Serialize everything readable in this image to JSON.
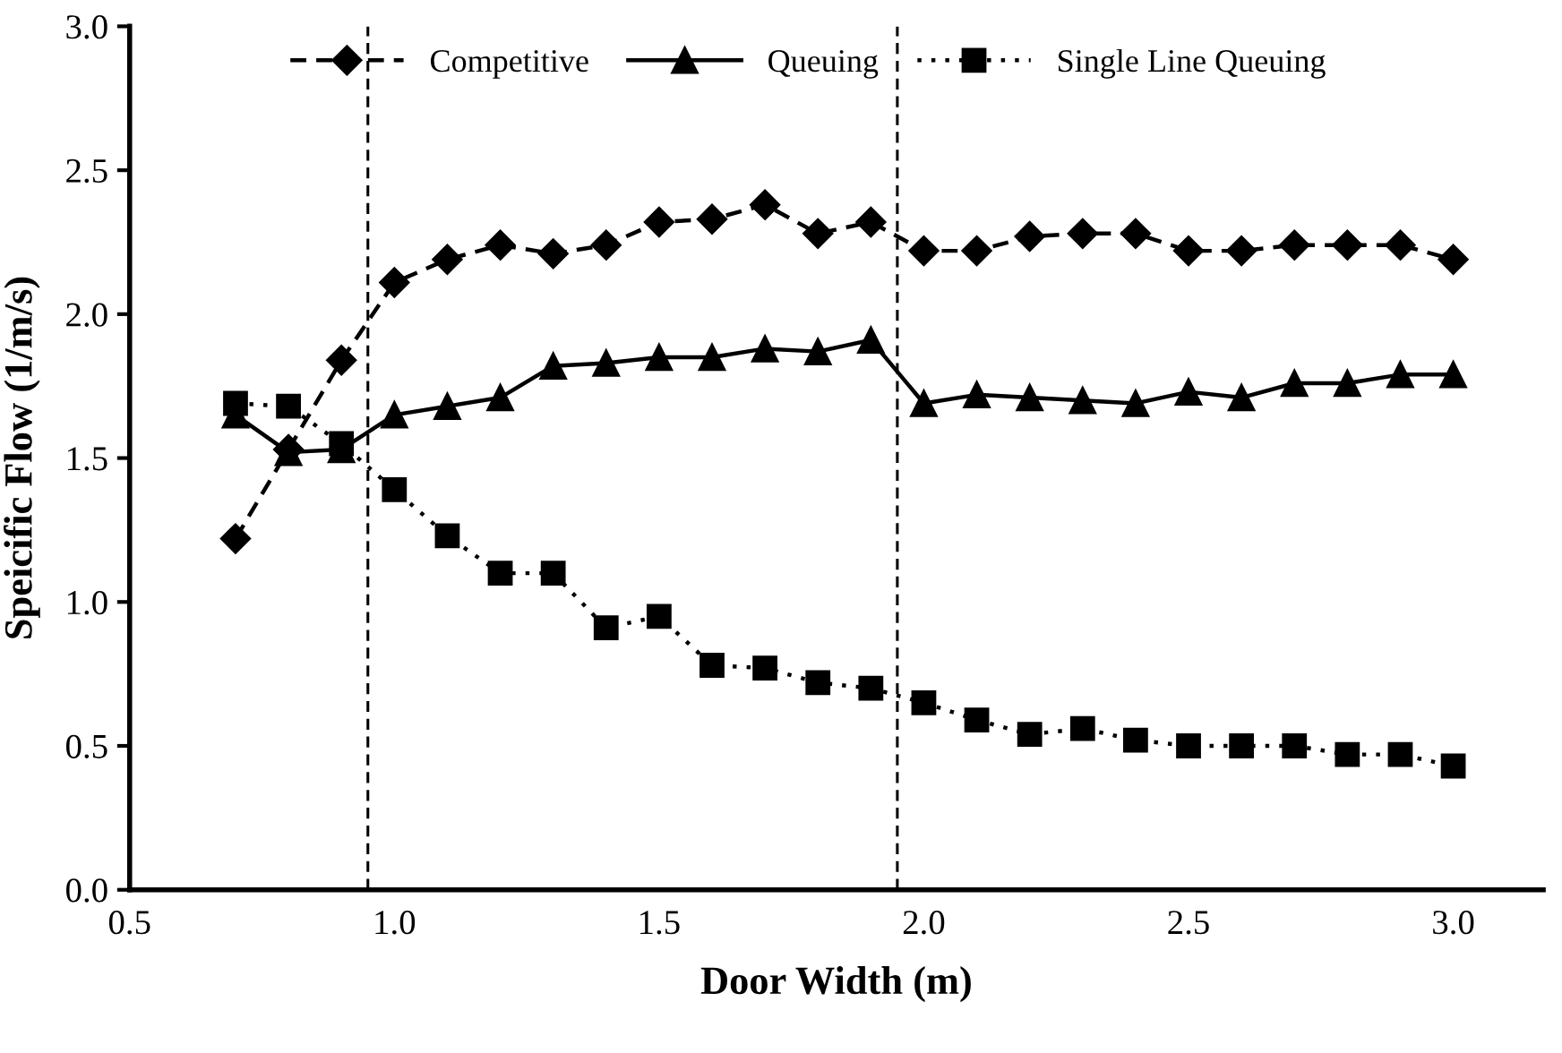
{
  "chart_data": {
    "type": "line",
    "xlabel": "Door Width (m)",
    "ylabel": "Speicific Flow (1/m/s)",
    "x": [
      0.7,
      0.8,
      0.9,
      1.0,
      1.1,
      1.2,
      1.3,
      1.4,
      1.5,
      1.6,
      1.7,
      1.8,
      1.9,
      2.0,
      2.1,
      2.2,
      2.3,
      2.4,
      2.5,
      2.6,
      2.7,
      2.8,
      2.9,
      3.0
    ],
    "series": [
      {
        "name": "Competitive",
        "color": "#000000",
        "marker": "diamond",
        "line_style": "dashed",
        "values": [
          1.22,
          1.53,
          1.84,
          2.11,
          2.19,
          2.24,
          2.21,
          2.24,
          2.32,
          2.33,
          2.38,
          2.28,
          2.32,
          2.22,
          2.22,
          2.27,
          2.28,
          2.28,
          2.22,
          2.22,
          2.24,
          2.24,
          2.24,
          2.19
        ]
      },
      {
        "name": "Queuing",
        "color": "#000000",
        "marker": "triangle",
        "line_style": "solid",
        "values": [
          1.65,
          1.52,
          1.53,
          1.65,
          1.68,
          1.71,
          1.82,
          1.83,
          1.85,
          1.85,
          1.88,
          1.87,
          1.91,
          1.69,
          1.72,
          1.71,
          1.7,
          1.69,
          1.73,
          1.71,
          1.76,
          1.76,
          1.79,
          1.79
        ]
      },
      {
        "name": "Single Line Queuing",
        "color": "#000000",
        "marker": "square",
        "line_style": "dotted",
        "values": [
          1.69,
          1.68,
          1.55,
          1.39,
          1.23,
          1.1,
          1.1,
          0.91,
          0.95,
          0.78,
          0.77,
          0.72,
          0.7,
          0.65,
          0.59,
          0.54,
          0.56,
          0.52,
          0.5,
          0.5,
          0.5,
          0.47,
          0.47,
          0.43
        ]
      }
    ],
    "xlim": [
      0.5,
      3.17
    ],
    "xticks": [
      0.5,
      {
        "value": 1,
        "label": "1.0"
      },
      1.5,
      {
        "value": 2,
        "label": "2.0"
      },
      2.5,
      {
        "value": 3,
        "label": "3.0"
      }
    ],
    "ylim": [
      0,
      3.0
    ],
    "yticks": [
      {
        "value": 0,
        "label": "0.0"
      },
      0.5,
      {
        "value": 1,
        "label": "1.0"
      },
      1.5,
      {
        "value": 2,
        "label": "2.0"
      },
      2.5,
      {
        "value": 3,
        "label": "3.0"
      }
    ],
    "ref_lines": [
      {
        "axis": "x",
        "value": 0.95,
        "color": "#000000",
        "line_style": "dashed"
      },
      {
        "axis": "x",
        "value": 1.95,
        "color": "#000000",
        "line_style": "dashed"
      }
    ],
    "grid": false,
    "legend": "top"
  }
}
